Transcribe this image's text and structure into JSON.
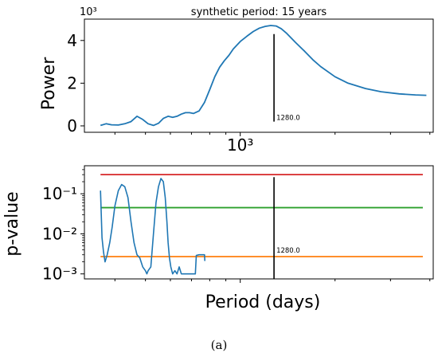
{
  "caption": "(a)",
  "chart_data": [
    {
      "type": "line",
      "title": "synthetic period: 15 years",
      "xlabel": "",
      "ylabel": "Power",
      "xscale": "log",
      "y_multiplier_label": "10³",
      "x_tick_labels": [
        {
          "value": 1000,
          "label": "10³"
        }
      ],
      "y_ticks": [
        0,
        2,
        4
      ],
      "ylim": [
        -0.3,
        5.0
      ],
      "xlim": [
        320,
        4100
      ],
      "grid": false,
      "series": [
        {
          "color": "#1f77b4",
          "x": [
            360,
            375,
            390,
            410,
            430,
            450,
            470,
            490,
            510,
            530,
            550,
            570,
            590,
            610,
            630,
            650,
            670,
            690,
            710,
            740,
            770,
            800,
            830,
            860,
            890,
            920,
            950,
            1000,
            1050,
            1100,
            1150,
            1200,
            1250,
            1300,
            1350,
            1400,
            1500,
            1600,
            1700,
            1800,
            2000,
            2200,
            2500,
            2800,
            3200,
            3600,
            3900
          ],
          "y": [
            0.02,
            0.1,
            0.05,
            0.04,
            0.1,
            0.2,
            0.45,
            0.3,
            0.1,
            0.02,
            0.12,
            0.35,
            0.45,
            0.4,
            0.45,
            0.55,
            0.62,
            0.62,
            0.58,
            0.7,
            1.1,
            1.7,
            2.3,
            2.75,
            3.05,
            3.3,
            3.6,
            3.95,
            4.2,
            4.42,
            4.58,
            4.66,
            4.7,
            4.68,
            4.55,
            4.35,
            3.9,
            3.5,
            3.1,
            2.78,
            2.3,
            2.0,
            1.75,
            1.6,
            1.5,
            1.45,
            1.43
          ]
        }
      ],
      "vline": {
        "x": 1280,
        "y_from": 0.2,
        "y_to": 4.3,
        "color": "#000000",
        "label": "1280.0"
      }
    },
    {
      "type": "line",
      "title": "",
      "xlabel": "Period (days)",
      "ylabel": "p-value",
      "xscale": "log",
      "yscale": "log",
      "y_ticks": [
        0.001,
        0.01,
        0.1
      ],
      "y_tick_labels": [
        "10⁻³",
        "10⁻²",
        "10⁻¹"
      ],
      "ylim": [
        0.00075,
        0.5
      ],
      "xlim": [
        320,
        4100
      ],
      "grid": false,
      "series": [
        {
          "color": "#1f77b4",
          "x": [
            360,
            364,
            368,
            372,
            378,
            385,
            392,
            400,
            410,
            420,
            430,
            440,
            450,
            460,
            470,
            480,
            490,
            500,
            505,
            510,
            520,
            530,
            540,
            550,
            560,
            570,
            578,
            585,
            590,
            596,
            602,
            610,
            620,
            630,
            640,
            650,
            660,
            665,
            680,
            720,
            725,
            740,
            760,
            770,
            772
          ],
          "y": [
            0.12,
            0.008,
            0.0035,
            0.002,
            0.003,
            0.006,
            0.015,
            0.05,
            0.12,
            0.17,
            0.15,
            0.08,
            0.02,
            0.006,
            0.003,
            0.0025,
            0.0015,
            0.0012,
            0.001,
            0.0012,
            0.0015,
            0.01,
            0.06,
            0.15,
            0.24,
            0.2,
            0.08,
            0.02,
            0.006,
            0.0025,
            0.0015,
            0.001,
            0.0012,
            0.001,
            0.0015,
            0.001,
            0.001,
            0.001,
            0.001,
            0.001,
            0.0029,
            0.003,
            0.003,
            0.003,
            0.0021
          ]
        }
      ],
      "hlines": [
        {
          "y": 0.3,
          "color": "#d62728"
        },
        {
          "y": 0.045,
          "color": "#2ca02c"
        },
        {
          "y": 0.0027,
          "color": "#ff7f0e"
        }
      ],
      "hline_x_range": [
        360,
        3800
      ],
      "vline": {
        "x": 1280,
        "y_from": 0.00075,
        "y_to": 0.26,
        "color": "#000000",
        "label": "1280.0"
      }
    }
  ]
}
